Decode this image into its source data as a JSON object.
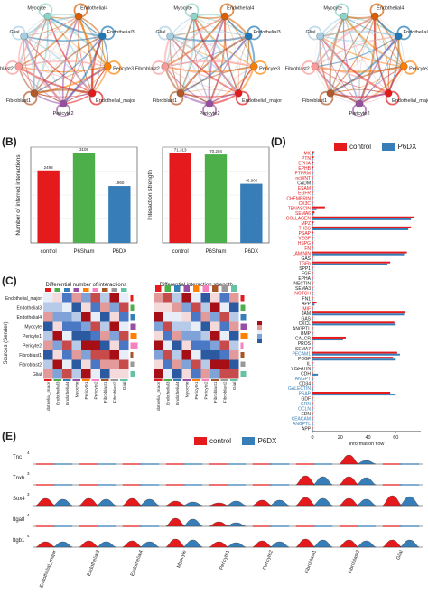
{
  "colors": {
    "control": "#e41a1c",
    "p6sham": "#4daf4a",
    "p6dx": "#377eb8",
    "line_grey": "#999999"
  },
  "panelA": {
    "nodes": [
      "Endothelial4",
      "Myocyte",
      "Endothelial3",
      "Pericyte3",
      "Endothelial_major",
      "Pericyte2",
      "Fibroblast1",
      "Fibroblast2",
      "Glial"
    ],
    "node_colors": [
      "#8dd3c7",
      "#d95f02",
      "#1f78b4",
      "#ff7f00",
      "#e31a1c",
      "#984ea3",
      "#b15928",
      "#fb9a99",
      "#a6cee3"
    ],
    "labels_network": [
      "Myocyte",
      "Endothelial4",
      "Endothelial3",
      "Pericyte3",
      "Endothelial_major",
      "Pericyte2",
      "Fibroblast1",
      "Fibroblast2",
      "Glial"
    ]
  },
  "panelB": {
    "letter": "(B)",
    "chart_data": [
      {
        "type": "bar",
        "categories": [
          "control",
          "P6Sham",
          "P6DX"
        ],
        "values": [
          2498,
          3108,
          1960
        ],
        "value_labels": [
          "2498",
          "3108",
          "1960"
        ],
        "ylabel": "Number of inferred interactions",
        "ylim": [
          0,
          3300
        ]
      },
      {
        "type": "bar",
        "categories": [
          "control",
          "P6Sham",
          "P6DX"
        ],
        "values": [
          71.3,
          70.2,
          46.9
        ],
        "value_labels": [
          "71.313",
          "70.204",
          "46.905"
        ],
        "ylabel": "Interaction strength",
        "ylim": [
          0,
          76
        ]
      }
    ]
  },
  "panelC": {
    "letter": "(C)",
    "left_title": "Differential number of interactions",
    "right_title": "Differential interaction strength",
    "ylabel": "Sources (Sender)",
    "row_labels": [
      "Endothelial_major",
      "Endothelial3",
      "Endothelial4",
      "Myocyte",
      "Pericyte1",
      "Pericyte2",
      "Fibroblast1",
      "Fibroblast2",
      "Glial"
    ],
    "col_labels": [
      "Endothelial_major",
      "Endothelial3",
      "Endothelial4",
      "Myocyte",
      "Pericyte1",
      "Pericyte2",
      "Fibroblast1",
      "Fibroblast2",
      "Glial"
    ]
  },
  "panelD": {
    "letter": "(D)",
    "legend": [
      "control",
      "P6DX"
    ],
    "xlabel": "Information flow",
    "ticks": [
      "0",
      "20",
      "40",
      "60"
    ],
    "pathways": [
      {
        "name": "MK",
        "c": 1,
        "d": 0.6,
        "color": "#e41a1c"
      },
      {
        "name": "PTN",
        "c": 0.9,
        "d": 0.4,
        "color": "#e41a1c"
      },
      {
        "name": "EPHA",
        "c": 0.7,
        "d": 0.3,
        "color": "#e41a1c"
      },
      {
        "name": "EPHB",
        "c": 0.6,
        "d": 0.2,
        "color": "#e41a1c"
      },
      {
        "name": "PTPRM",
        "c": 0.5,
        "d": 0.2,
        "color": "#e41a1c"
      },
      {
        "name": "ncWNT",
        "c": 0.4,
        "d": 0.2,
        "color": "#e41a1c"
      },
      {
        "name": "CADM",
        "c": 0.4,
        "d": 0.3,
        "color": "#222222"
      },
      {
        "name": "ESAM",
        "c": 0.3,
        "d": 0.1,
        "color": "#e41a1c"
      },
      {
        "name": "EGFR",
        "c": 0.3,
        "d": 0.1,
        "color": "#e41a1c"
      },
      {
        "name": "CHEMERIN",
        "c": 0.3,
        "d": 0.1,
        "color": "#e41a1c"
      },
      {
        "name": "CX3C",
        "c": 0.2,
        "d": 0.1,
        "color": "#e41a1c"
      },
      {
        "name": "TENASCIN",
        "c": 9,
        "d": 3,
        "color": "#e41a1c"
      },
      {
        "name": "SEMA6",
        "c": 1.5,
        "d": 0.8,
        "color": "#e41a1c"
      },
      {
        "name": "COLLAGEN",
        "c": 73,
        "d": 71,
        "color": "#e41a1c"
      },
      {
        "name": "MPZ",
        "c": 0.8,
        "d": 0.4,
        "color": "#e41a1c"
      },
      {
        "name": "THBS",
        "c": 71,
        "d": 69,
        "color": "#e41a1c"
      },
      {
        "name": "PSAP",
        "c": 0.6,
        "d": 0.3,
        "color": "#e41a1c"
      },
      {
        "name": "VEGF",
        "c": 0.5,
        "d": 0.3,
        "color": "#e41a1c"
      },
      {
        "name": "HSPG",
        "c": 0.5,
        "d": 0.3,
        "color": "#e41a1c"
      },
      {
        "name": "FN",
        "c": 0.4,
        "d": 0.3,
        "color": "#e41a1c"
      },
      {
        "name": "LAMININ",
        "c": 68,
        "d": 66,
        "color": "#e41a1c"
      },
      {
        "name": "GAS",
        "c": 0.4,
        "d": 0.3,
        "color": "#222222"
      },
      {
        "name": "TGFb",
        "c": 56,
        "d": 54,
        "color": "#e41a1c"
      },
      {
        "name": "SPP1",
        "c": 0.4,
        "d": 0.3,
        "color": "#222222"
      },
      {
        "name": "FGF",
        "c": 0.4,
        "d": 0.4,
        "color": "#222222"
      },
      {
        "name": "EPHA",
        "c": 0.3,
        "d": 0.3,
        "color": "#222222"
      },
      {
        "name": "NECTIN",
        "c": 0.3,
        "d": 0.3,
        "color": "#222222"
      },
      {
        "name": "SEMA3",
        "c": 0.3,
        "d": 0.3,
        "color": "#222222"
      },
      {
        "name": "NOTCH",
        "c": 0.3,
        "d": 0.2,
        "color": "#e41a1c"
      },
      {
        "name": "FN1",
        "c": 0.3,
        "d": 0.3,
        "color": "#222222"
      },
      {
        "name": "APP",
        "c": 3,
        "d": 1.5,
        "color": "#222222"
      },
      {
        "name": "MIF",
        "c": 0.3,
        "d": 0.2,
        "color": "#e41a1c"
      },
      {
        "name": "JAM",
        "c": 67,
        "d": 66,
        "color": "#222222"
      },
      {
        "name": "GAS",
        "c": 0.4,
        "d": 0.4,
        "color": "#222222"
      },
      {
        "name": "CXCL",
        "c": 59,
        "d": 60,
        "color": "#222222"
      },
      {
        "name": "ANGPTL",
        "c": 0.3,
        "d": 0.3,
        "color": "#222222"
      },
      {
        "name": "BMP",
        "c": 0.3,
        "d": 0.3,
        "color": "#222222"
      },
      {
        "name": "CALCR",
        "c": 24,
        "d": 22,
        "color": "#222222"
      },
      {
        "name": "PROS",
        "c": 0.3,
        "d": 0.3,
        "color": "#222222"
      },
      {
        "name": "SEMA7",
        "c": 0.3,
        "d": 0.3,
        "color": "#222222"
      },
      {
        "name": "PECAM1",
        "c": 61,
        "d": 63,
        "color": "#377eb8"
      },
      {
        "name": "PDGF",
        "c": 58,
        "d": 60,
        "color": "#222222"
      },
      {
        "name": "IL",
        "c": 0.3,
        "d": 0.3,
        "color": "#222222"
      },
      {
        "name": "VISFATIN",
        "c": 0.2,
        "d": 0.4,
        "color": "#222222"
      },
      {
        "name": "CDH",
        "c": 0.3,
        "d": 4,
        "color": "#222222"
      },
      {
        "name": "ANGPT",
        "c": 0.3,
        "d": 0.5,
        "color": "#377eb8"
      },
      {
        "name": "CD34",
        "c": 0.2,
        "d": 0.4,
        "color": "#222222"
      },
      {
        "name": "GALECTIN",
        "c": 0.2,
        "d": 0.5,
        "color": "#377eb8"
      },
      {
        "name": "PSAP",
        "c": 56,
        "d": 60,
        "color": "#377eb8"
      },
      {
        "name": "GDF",
        "c": 0.2,
        "d": 0.4,
        "color": "#222222"
      },
      {
        "name": "GRN",
        "c": 0.1,
        "d": 0.4,
        "color": "#377eb8"
      },
      {
        "name": "OCLN",
        "c": 0.1,
        "d": 0.3,
        "color": "#377eb8"
      },
      {
        "name": "EDN",
        "c": 0.1,
        "d": 0.3,
        "color": "#222222"
      },
      {
        "name": "CEACAM",
        "c": 0.1,
        "d": 0.3,
        "color": "#377eb8"
      },
      {
        "name": "ANGPTL",
        "c": 0.1,
        "d": 0.3,
        "color": "#377eb8"
      },
      {
        "name": "APP",
        "c": 0.1,
        "d": 0.3,
        "color": "#222222"
      }
    ]
  },
  "panelE": {
    "letter": "(E)",
    "legend": [
      "control",
      "P6DX"
    ],
    "genes": [
      "Tnc",
      "Tnxb",
      "Sox4",
      "Itga8",
      "Itgb1"
    ],
    "clusters": [
      "Endothelial_major",
      "Endothelial3",
      "Endothelial4",
      "Myocyte",
      "Pericyte1",
      "Pericyte2",
      "Fibroblast1",
      "Fibroblast2",
      "Glial"
    ],
    "scale_labels": [
      "4",
      "3",
      "3",
      "4",
      "4"
    ]
  }
}
